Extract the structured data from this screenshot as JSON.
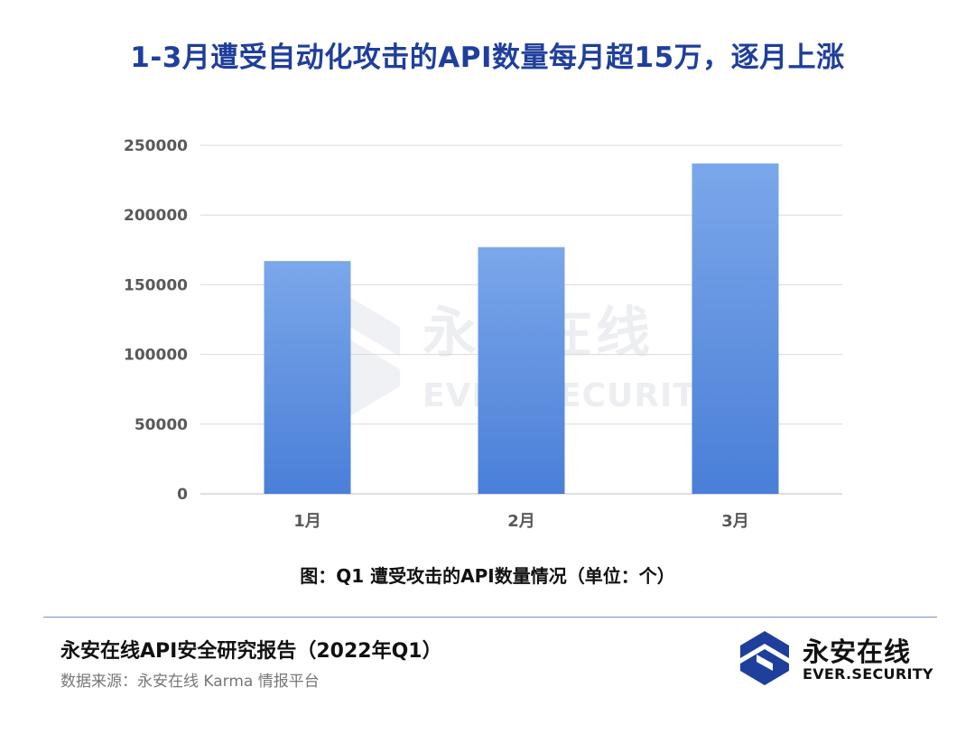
{
  "title": "1-3月遭受自动化攻击的API数量每月超15万，逐月上涨",
  "caption": "图：Q1 遭受攻击的API数量情况（单位：个）",
  "footer": {
    "report_title": "永安在线API安全研究报告（2022年Q1）",
    "source": "数据来源：永安在线 Karma 情报平台"
  },
  "logo": {
    "name_cn": "永安在线",
    "name_en": "EVER.SECURITY",
    "icon": "logo-mark-icon"
  },
  "watermark": {
    "name_cn": "永安在线",
    "name_en": "EVER.SECURITY",
    "icon": "watermark-mark-icon"
  },
  "colors": {
    "title": "#1f3f9c",
    "bar_top": "#7ba7ea",
    "bar_bottom": "#4a7fd8",
    "grid": "#d9d9d9",
    "logo": "#1f3f9c"
  },
  "chart_data": {
    "type": "bar",
    "categories": [
      "1月",
      "2月",
      "3月"
    ],
    "values": [
      167000,
      177000,
      237000
    ],
    "ylim": [
      0,
      250000
    ],
    "yticks": [
      0,
      50000,
      100000,
      150000,
      200000,
      250000
    ],
    "ytick_labels": [
      "0",
      "50000",
      "100000",
      "150000",
      "200000",
      "250000"
    ],
    "grid": true,
    "legend": "none"
  }
}
